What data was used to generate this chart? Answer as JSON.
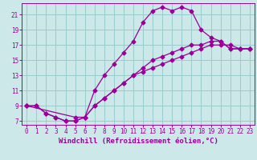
{
  "xlabel": "Windchill (Refroidissement éolien,°C)",
  "ylabel": "",
  "bg_color": "#cce8e8",
  "line_color": "#990099",
  "grid_color": "#99cccc",
  "xlim": [
    -0.5,
    23.5
  ],
  "ylim": [
    6.5,
    22.5
  ],
  "xticks": [
    0,
    1,
    2,
    3,
    4,
    5,
    6,
    7,
    8,
    9,
    10,
    11,
    12,
    13,
    14,
    15,
    16,
    17,
    18,
    19,
    20,
    21,
    22,
    23
  ],
  "yticks": [
    7,
    9,
    11,
    13,
    15,
    17,
    19,
    21
  ],
  "line1_x": [
    0,
    1,
    2,
    3,
    4,
    5,
    6,
    7,
    8,
    9,
    10,
    11,
    12,
    13,
    14,
    15,
    16,
    17,
    18,
    19,
    20,
    21,
    22,
    23
  ],
  "line1_y": [
    9,
    9,
    8,
    7.5,
    7,
    7,
    7.5,
    11,
    13,
    14.5,
    16,
    17.5,
    20,
    21.5,
    22,
    21.5,
    22,
    21.5,
    19,
    18,
    17.5,
    16.5,
    16.5,
    16.5
  ],
  "line2_x": [
    0,
    1,
    2,
    3,
    4,
    5,
    6,
    7,
    8,
    9,
    10,
    11,
    12,
    13,
    14,
    15,
    16,
    17,
    18,
    19,
    20,
    21,
    22,
    23
  ],
  "line2_y": [
    9,
    9,
    8,
    7.5,
    7,
    7,
    7.5,
    9,
    10,
    11,
    12,
    13,
    13.5,
    14,
    14.5,
    15,
    15.5,
    16,
    16.5,
    17,
    17,
    17,
    16.5,
    16.5
  ],
  "line3_x": [
    0,
    5,
    6,
    7,
    8,
    9,
    10,
    11,
    12,
    13,
    14,
    15,
    16,
    17,
    18,
    19,
    20,
    21,
    22,
    23
  ],
  "line3_y": [
    9,
    7.5,
    7.5,
    9,
    10,
    11,
    12,
    13,
    14,
    15,
    15.5,
    16,
    16.5,
    17,
    17,
    17.5,
    17.5,
    16.5,
    16.5,
    16.5
  ],
  "tick_fontsize": 5.5,
  "xlabel_fontsize": 6.5
}
